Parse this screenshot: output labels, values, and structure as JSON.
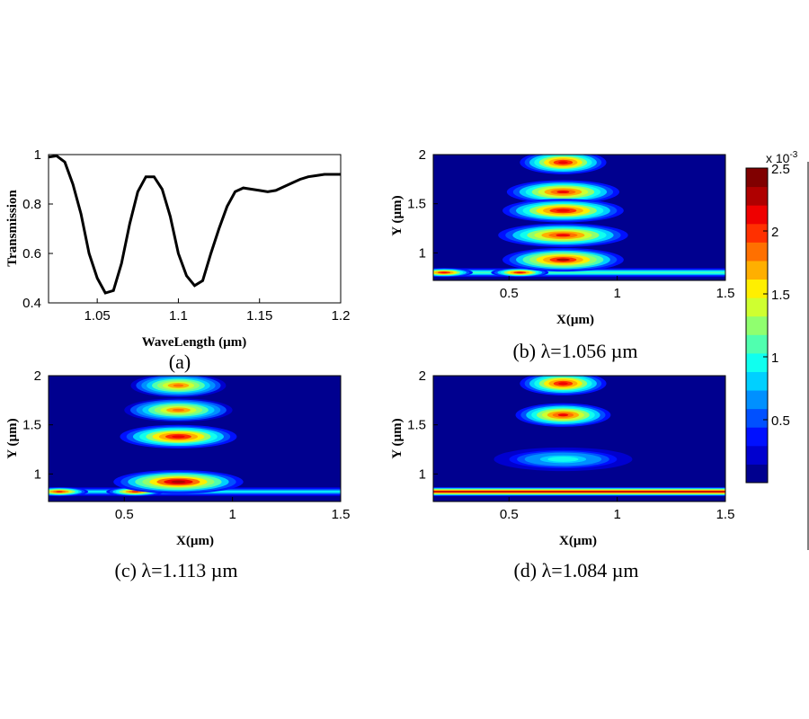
{
  "colors": {
    "background": "#00008f",
    "curve": "#000000",
    "colormap": [
      "#00008f",
      "#0000cf",
      "#0010ff",
      "#0050ff",
      "#0090ff",
      "#00d0ff",
      "#10ffef",
      "#50ffaf",
      "#90ff6f",
      "#cfff30",
      "#ffef00",
      "#ffaf00",
      "#ff7000",
      "#ff3000",
      "#ef0000",
      "#af0000",
      "#800000"
    ]
  },
  "chart_data": [
    {
      "id": "a",
      "type": "line",
      "caption": "(a)",
      "xlabel": "WaveLength (µm)",
      "ylabel": "Transmission",
      "xlim": [
        1.02,
        1.2
      ],
      "ylim": [
        0.4,
        1.0
      ],
      "xticks": [
        "1.05",
        "1.1",
        "1.15",
        "1.2"
      ],
      "xtick_values": [
        1.05,
        1.1,
        1.15,
        1.2
      ],
      "yticks": [
        "0.4",
        "0.6",
        "0.8",
        "1"
      ],
      "ytick_values": [
        0.4,
        0.6,
        0.8,
        1.0
      ],
      "x": [
        1.02,
        1.025,
        1.03,
        1.035,
        1.04,
        1.045,
        1.05,
        1.055,
        1.06,
        1.065,
        1.07,
        1.075,
        1.08,
        1.085,
        1.09,
        1.095,
        1.1,
        1.105,
        1.11,
        1.115,
        1.12,
        1.125,
        1.13,
        1.135,
        1.14,
        1.145,
        1.15,
        1.155,
        1.16,
        1.165,
        1.17,
        1.175,
        1.18,
        1.185,
        1.19,
        1.195,
        1.2
      ],
      "y": [
        0.99,
        0.995,
        0.97,
        0.88,
        0.76,
        0.6,
        0.5,
        0.44,
        0.45,
        0.56,
        0.72,
        0.85,
        0.91,
        0.91,
        0.86,
        0.75,
        0.6,
        0.51,
        0.47,
        0.49,
        0.6,
        0.7,
        0.79,
        0.85,
        0.865,
        0.86,
        0.855,
        0.85,
        0.855,
        0.87,
        0.885,
        0.9,
        0.91,
        0.915,
        0.92,
        0.92,
        0.92
      ]
    },
    {
      "id": "b",
      "type": "heatmap",
      "caption": "(b) λ=1.056 µm",
      "xlabel": "X(µm)",
      "ylabel": "Y (µm)",
      "xlim": [
        0.15,
        1.5
      ],
      "ylim": [
        0.72,
        2.0
      ],
      "xticks": [
        "0.5",
        "1",
        "1.5"
      ],
      "xtick_values": [
        0.5,
        1.0,
        1.5
      ],
      "yticks": [
        "1",
        "1.5",
        "2"
      ],
      "ytick_values": [
        1.0,
        1.5,
        2.0
      ],
      "field": {
        "waveguide_y": 0.8,
        "waveguide_level": 0.45,
        "feed_spots": [
          0.2,
          0.55
        ],
        "feed_level": 0.9,
        "lobes": [
          {
            "y": 1.92,
            "level": 0.9,
            "half_width": 0.2
          },
          {
            "y": 1.62,
            "level": 0.85,
            "half_width": 0.26
          },
          {
            "y": 1.43,
            "level": 0.9,
            "half_width": 0.28
          },
          {
            "y": 1.18,
            "level": 0.85,
            "half_width": 0.3
          },
          {
            "y": 0.93,
            "level": 0.92,
            "half_width": 0.28
          }
        ]
      }
    },
    {
      "id": "c",
      "type": "heatmap",
      "caption": "(c) λ=1.113 µm",
      "xlabel": "X(µm)",
      "ylabel": "Y (µm)",
      "xlim": [
        0.15,
        1.5
      ],
      "ylim": [
        0.72,
        2.0
      ],
      "xticks": [
        "0.5",
        "1",
        "1.5"
      ],
      "xtick_values": [
        0.5,
        1.0,
        1.5
      ],
      "yticks": [
        "1",
        "1.5",
        "2"
      ],
      "ytick_values": [
        1.0,
        1.5,
        2.0
      ],
      "field": {
        "waveguide_y": 0.82,
        "waveguide_level": 0.35,
        "feed_spots": [
          0.2,
          0.55
        ],
        "feed_level": 0.85,
        "lobes": [
          {
            "y": 1.9,
            "level": 0.75,
            "half_width": 0.22
          },
          {
            "y": 1.65,
            "level": 0.75,
            "half_width": 0.25
          },
          {
            "y": 1.38,
            "level": 0.9,
            "half_width": 0.27
          },
          {
            "y": 0.92,
            "level": 0.95,
            "half_width": 0.3
          }
        ]
      }
    },
    {
      "id": "d",
      "type": "heatmap",
      "caption": "(d) λ=1.084 µm",
      "xlabel": "X(µm)",
      "ylabel": "Y (µm)",
      "xlim": [
        0.15,
        1.5
      ],
      "ylim": [
        0.72,
        2.0
      ],
      "xticks": [
        "0.5",
        "1",
        "1.5"
      ],
      "xtick_values": [
        0.5,
        1.0,
        1.5
      ],
      "yticks": [
        "1",
        "1.5",
        "2"
      ],
      "ytick_values": [
        1.0,
        1.5,
        2.0
      ],
      "field": {
        "waveguide_y": 0.82,
        "waveguide_level": 0.92,
        "feed_spots": [],
        "feed_level": 0.0,
        "lobes": [
          {
            "y": 1.92,
            "level": 0.9,
            "half_width": 0.2
          },
          {
            "y": 1.6,
            "level": 0.85,
            "half_width": 0.22
          },
          {
            "y": 1.15,
            "level": 0.4,
            "half_width": 0.32
          }
        ]
      }
    },
    {
      "id": "colorbar",
      "type": "colorbar",
      "multiplier": "x 10",
      "exponent": "-3",
      "range": [
        0,
        2.5
      ],
      "ticks": [
        "0.5",
        "1",
        "1.5",
        "2",
        "2.5"
      ],
      "tick_values": [
        0.5,
        1.0,
        1.5,
        2.0,
        2.5
      ]
    }
  ]
}
